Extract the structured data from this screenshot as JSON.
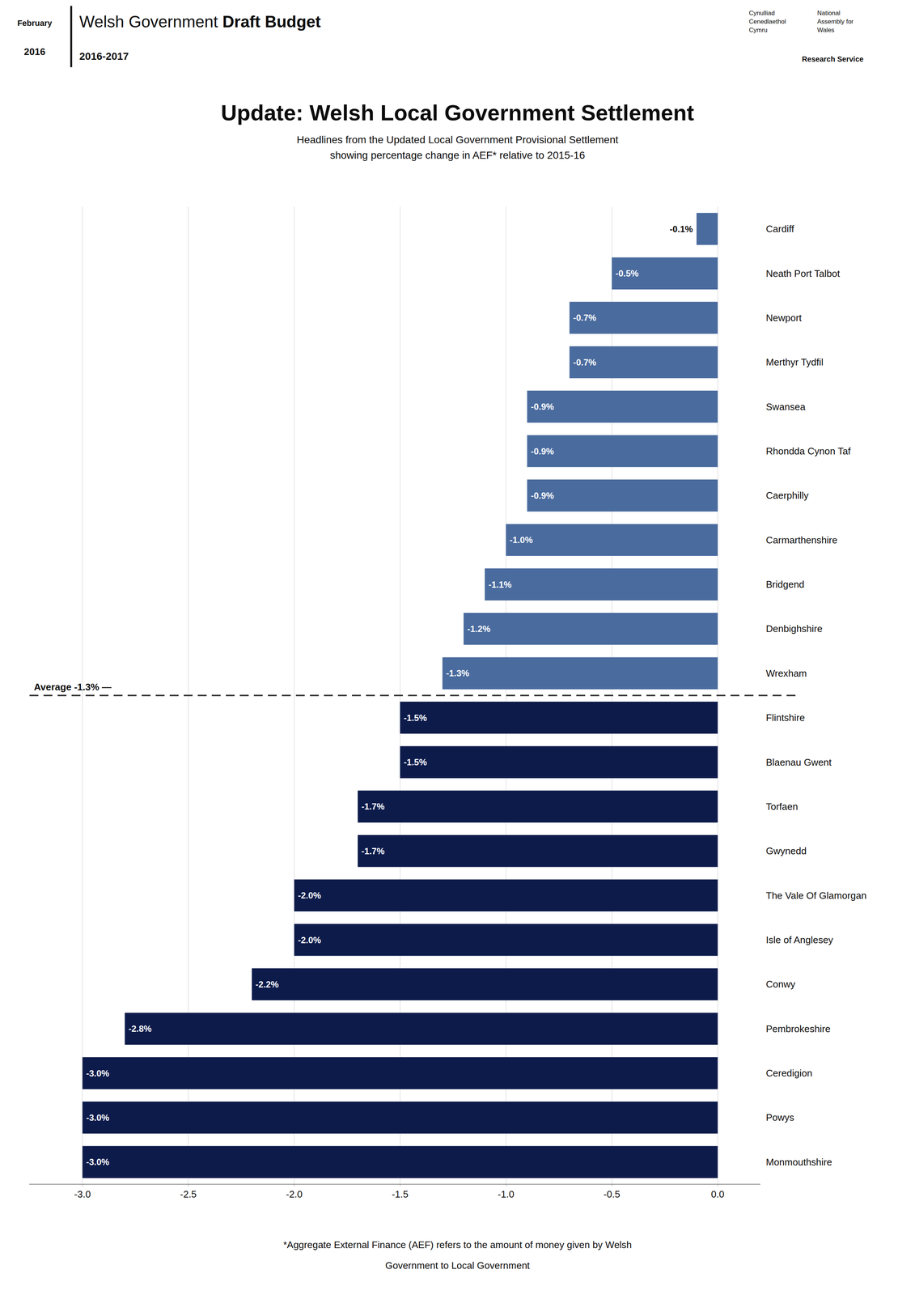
{
  "chart_data": {
    "type": "bar",
    "orientation": "horizontal",
    "title": "Update: Welsh Local Government Settlement",
    "subtitle": [
      "Headlines from the Updated Local Government Provisional Settlement",
      "showing percentage change in AEF* relative to 2015-16"
    ],
    "header": {
      "date": [
        "February",
        "2016"
      ],
      "main": "Welsh Government ",
      "bold": "Draft Budget",
      "sub": "2016-2017",
      "right": [
        "Cynulliad\nCenedlaethol\nCymru",
        "National\nAssembly for\nWales"
      ],
      "badge": "Research Service"
    },
    "footer": [
      "*Aggregate External Finance (AEF) refers to the amount of money given by Welsh",
      "Government to Local Government"
    ],
    "categories": [
      "Cardiff",
      "Neath Port Talbot",
      "Newport",
      "Merthyr Tydfil",
      "Swansea",
      "Rhondda Cynon Taf",
      "Caerphilly",
      "Carmarthenshire",
      "Bridgend",
      "Denbighshire",
      "Wrexham",
      "Flintshire",
      "Blaenau Gwent",
      "Torfaen",
      "Gwynedd",
      "The Vale Of Glamorgan",
      "Isle of Anglesey",
      "Conwy",
      "Pembrokeshire",
      "Ceredigion",
      "Powys",
      "Monmouthshire"
    ],
    "values": [
      -0.1,
      -0.5,
      -0.7,
      -0.7,
      -0.9,
      -0.9,
      -0.9,
      -1.0,
      -1.1,
      -1.2,
      -1.3,
      -1.5,
      -1.5,
      -1.7,
      -1.7,
      -2.0,
      -2.0,
      -2.2,
      -2.8,
      -3.0,
      -3.0,
      -3.0
    ],
    "value_labels": [
      "-0.1%",
      "-0.5%",
      "-0.7%",
      "-0.7%",
      "-0.9%",
      "-0.9%",
      "-0.9%",
      "-1.0%",
      "-1.1%",
      "-1.2%",
      "-1.3%",
      "-1.5%",
      "-1.5%",
      "-1.7%",
      "-1.7%",
      "-2.0%",
      "-2.0%",
      "-2.2%",
      "-2.8%",
      "-3.0%",
      "-3.0%",
      "-3.0%"
    ],
    "colors": [
      "#4a6b9e",
      "#4a6b9e",
      "#4a6b9e",
      "#4a6b9e",
      "#4a6b9e",
      "#4a6b9e",
      "#4a6b9e",
      "#4a6b9e",
      "#4a6b9e",
      "#4a6b9e",
      "#4a6b9e",
      "#0d1b4b",
      "#0d1b4b",
      "#0d1b4b",
      "#0d1b4b",
      "#0d1b4b",
      "#0d1b4b",
      "#0d1b4b",
      "#0d1b4b",
      "#0d1b4b",
      "#0d1b4b",
      "#0d1b4b"
    ],
    "data_labels": true,
    "average": {
      "value": -1.3,
      "label": "Average -1.3% —"
    },
    "xlim": [
      -3.25,
      0.2
    ],
    "xticks": [
      {
        "value": -3,
        "label": "-3.0"
      },
      {
        "value": -2.5,
        "label": "-2.5"
      },
      {
        "value": -2,
        "label": "-2.0"
      },
      {
        "value": -1.5,
        "label": "-1.5"
      },
      {
        "value": -1,
        "label": "-1.0"
      },
      {
        "value": -0.5,
        "label": "-0.5"
      },
      {
        "value": 0,
        "label": "0.0"
      }
    ],
    "grid": true
  }
}
